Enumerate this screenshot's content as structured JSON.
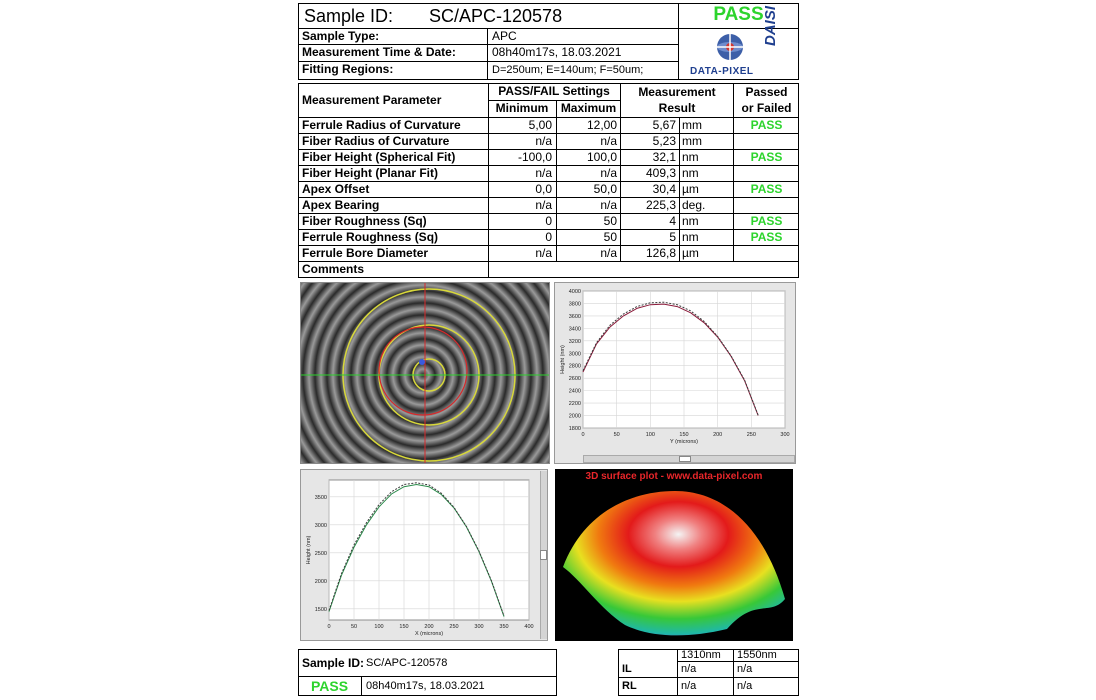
{
  "header": {
    "sample_id_label": "Sample ID:",
    "sample_id": "SC/APC-120578",
    "result": "PASS",
    "sample_type_label": "Sample Type:",
    "sample_type": "APC",
    "time_label": "Measurement Time & Date:",
    "time": "08h40m17s, 18.03.2021",
    "fitting_label": "Fitting Regions:",
    "fitting": "D=250um;  E=140um;  F=50um;",
    "logo_text": "DATA-PIXEL",
    "logo_daisi": "DAISI"
  },
  "table": {
    "col_param": "Measurement Parameter",
    "col_settings": "PASS/FAIL Settings",
    "col_min": "Minimum",
    "col_max": "Maximum",
    "col_result_1": "Measurement",
    "col_result_2": "Result",
    "col_passed_1": "Passed",
    "col_passed_2": "or Failed",
    "rows": [
      {
        "name": "Ferrule Radius of Curvature",
        "min": "5,00",
        "max": "12,00",
        "result": "5,67",
        "unit": "mm",
        "status": "PASS"
      },
      {
        "name": "Fiber Radius of Curvature",
        "min": "n/a",
        "max": "n/a",
        "result": "5,23",
        "unit": "mm",
        "status": ""
      },
      {
        "name": "Fiber Height (Spherical Fit)",
        "min": "-100,0",
        "max": "100,0",
        "result": "32,1",
        "unit": "nm",
        "status": "PASS"
      },
      {
        "name": "Fiber Height (Planar Fit)",
        "min": "n/a",
        "max": "n/a",
        "result": "409,3",
        "unit": "nm",
        "status": ""
      },
      {
        "name": "Apex Offset",
        "min": "0,0",
        "max": "50,0",
        "result": "30,4",
        "unit": "µm",
        "status": "PASS"
      },
      {
        "name": "Apex Bearing",
        "min": "n/a",
        "max": "n/a",
        "result": "225,3",
        "unit": "deg.",
        "status": ""
      },
      {
        "name": "Fiber Roughness (Sq)",
        "min": "0",
        "max": "50",
        "result": "4",
        "unit": "nm",
        "status": "PASS"
      },
      {
        "name": "Ferrule Roughness (Sq)",
        "min": "0",
        "max": "50",
        "result": "5",
        "unit": "nm",
        "status": "PASS"
      },
      {
        "name": "Ferrule Bore Diameter",
        "min": "n/a",
        "max": "n/a",
        "result": "126,8",
        "unit": "µm",
        "status": ""
      }
    ],
    "comments_label": "Comments"
  },
  "plot_3d_title": "3D surface plot - www.data-pixel.com",
  "chart_data": [
    {
      "type": "line",
      "xlabel": "Y (microns)",
      "ylabel": "Height (nm)",
      "xlim": [
        0,
        300
      ],
      "ylim": [
        1800,
        4000
      ],
      "x_ticks": [
        0,
        50,
        100,
        150,
        200,
        250,
        300
      ],
      "y_ticks": [
        1800,
        2000,
        2200,
        2400,
        2600,
        2800,
        3000,
        3200,
        3400,
        3600,
        3800,
        4000
      ],
      "series": [
        {
          "color": "#8b1a3a",
          "x": [
            0,
            20,
            40,
            60,
            80,
            100,
            120,
            140,
            160,
            180,
            200,
            220,
            240,
            260
          ],
          "y": [
            2700,
            3150,
            3420,
            3600,
            3720,
            3780,
            3790,
            3750,
            3650,
            3490,
            3260,
            2950,
            2560,
            2000
          ]
        },
        {
          "color": "#3c3c3c",
          "dashed": true,
          "x": [
            0,
            20,
            40,
            60,
            80,
            100,
            120,
            140,
            160,
            180,
            200,
            220,
            240,
            260
          ],
          "y": [
            2720,
            3170,
            3450,
            3630,
            3750,
            3810,
            3820,
            3780,
            3680,
            3510,
            3270,
            2960,
            2570,
            2010
          ]
        }
      ]
    },
    {
      "type": "line",
      "xlabel": "X (microns)",
      "ylabel": "Height (nm)",
      "xlim": [
        0,
        400
      ],
      "ylim": [
        1300,
        3800
      ],
      "x_ticks": [
        0,
        50,
        100,
        150,
        200,
        250,
        300,
        350,
        400
      ],
      "y_ticks": [
        1500,
        2000,
        2500,
        3000,
        3500
      ],
      "series": [
        {
          "color": "#2a8a4a",
          "x": [
            0,
            25,
            50,
            75,
            100,
            125,
            150,
            175,
            200,
            225,
            250,
            275,
            300,
            325,
            350
          ],
          "y": [
            1450,
            2100,
            2600,
            3000,
            3320,
            3550,
            3680,
            3720,
            3680,
            3540,
            3300,
            2960,
            2520,
            1990,
            1360
          ]
        },
        {
          "color": "#3c3c3c",
          "dashed": true,
          "x": [
            0,
            25,
            50,
            75,
            100,
            125,
            150,
            175,
            200,
            225,
            250,
            275,
            300,
            325,
            350
          ],
          "y": [
            1470,
            2130,
            2640,
            3040,
            3360,
            3590,
            3720,
            3750,
            3710,
            3560,
            3310,
            2970,
            2530,
            2000,
            1370
          ]
        }
      ]
    }
  ],
  "footer": {
    "sample_id_label": "Sample ID:",
    "sample_id": "SC/APC-120578",
    "result": "PASS",
    "time": "08h40m17s, 18.03.2021",
    "col_1310": "1310nm",
    "col_1550": "1550nm",
    "il_label": "IL",
    "rl_label": "RL",
    "il_1310": "n/a",
    "il_1550": "n/a",
    "rl_1310": "n/a",
    "rl_1550": "n/a"
  }
}
